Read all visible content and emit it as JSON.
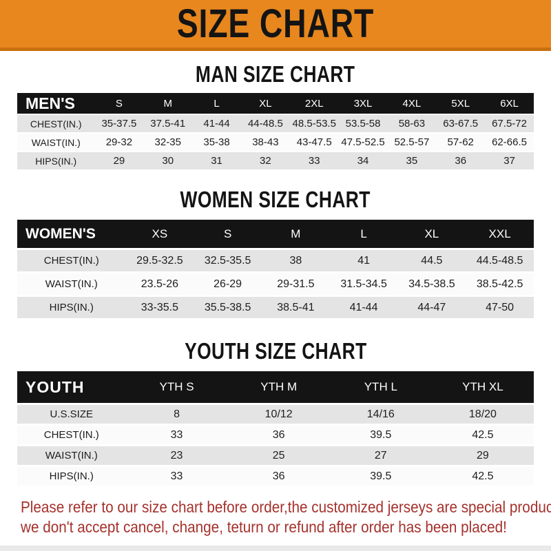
{
  "banner": {
    "title": "SIZE CHART",
    "bg_color": "#E8871E",
    "edge_color": "#C9700F",
    "text_color": "#141414"
  },
  "colors": {
    "header_bar": "#141414",
    "row_gray": "#E4E4E4",
    "row_white": "#FBFBFB",
    "disclaimer_red": "#A5312C"
  },
  "sections": [
    {
      "title": "MAN SIZE CHART",
      "table": {
        "label": "MEN'S",
        "columns": [
          "S",
          "M",
          "L",
          "XL",
          "2XL",
          "3XL",
          "4XL",
          "5XL",
          "6XL"
        ],
        "rows": [
          {
            "label": "CHEST(IN.)",
            "values": [
              "35-37.5",
              "37.5-41",
              "41-44",
              "44-48.5",
              "48.5-53.5",
              "53.5-58",
              "58-63",
              "63-67.5",
              "67.5-72"
            ]
          },
          {
            "label": "WAIST(IN.)",
            "values": [
              "29-32",
              "32-35",
              "35-38",
              "38-43",
              "43-47.5",
              "47.5-52.5",
              "52.5-57",
              "57-62",
              "62-66.5"
            ]
          },
          {
            "label": "HIPS(IN.)",
            "values": [
              "29",
              "30",
              "31",
              "32",
              "33",
              "34",
              "35",
              "36",
              "37"
            ]
          }
        ]
      }
    },
    {
      "title": "WOMEN SIZE CHART",
      "table": {
        "label": "WOMEN'S",
        "columns": [
          "XS",
          "S",
          "M",
          "L",
          "XL",
          "XXL"
        ],
        "rows": [
          {
            "label": "CHEST(IN.)",
            "values": [
              "29.5-32.5",
              "32.5-35.5",
              "38",
              "41",
              "44.5",
              "44.5-48.5"
            ]
          },
          {
            "label": "WAIST(IN.)",
            "values": [
              "23.5-26",
              "26-29",
              "29-31.5",
              "31.5-34.5",
              "34.5-38.5",
              "38.5-42.5"
            ]
          },
          {
            "label": "HIPS(IN.)",
            "values": [
              "33-35.5",
              "35.5-38.5",
              "38.5-41",
              "41-44",
              "44-47",
              "47-50"
            ]
          }
        ]
      }
    },
    {
      "title": "YOUTH SIZE CHART",
      "table": {
        "label": "YOUTH",
        "columns": [
          "YTH S",
          "YTH M",
          "YTH L",
          "YTH XL"
        ],
        "rows": [
          {
            "label": "U.S.SIZE",
            "values": [
              "8",
              "10/12",
              "14/16",
              "18/20"
            ]
          },
          {
            "label": "CHEST(IN.)",
            "values": [
              "33",
              "36",
              "39.5",
              "42.5"
            ]
          },
          {
            "label": "WAIST(IN.)",
            "values": [
              "23",
              "25",
              "27",
              "29"
            ]
          },
          {
            "label": "HIPS(IN.)",
            "values": [
              "33",
              "36",
              "39.5",
              "42.5"
            ]
          }
        ]
      }
    }
  ],
  "disclaimer": {
    "lines": [
      "Please refer to our size chart before order,the customized jerseys are special products,",
      "we don't accept cancel, change, teturn or refund after order has been placed!"
    ]
  }
}
